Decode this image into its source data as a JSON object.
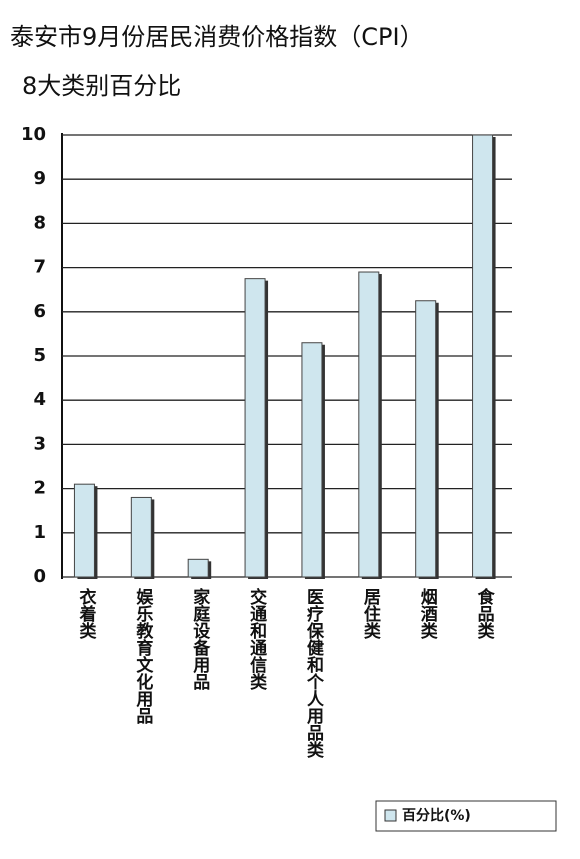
{
  "chart_data": {
    "type": "bar",
    "title": "泰安市9月份居民消费价格指数（CPI）",
    "subtitle": "8大类别百分比",
    "categories": [
      "衣着类",
      "娱乐教育文化用品",
      "家庭设备用品",
      "交通和通信类",
      "医疗保健和个人用品类",
      "居住类",
      "烟酒类",
      "食品类"
    ],
    "series": [
      {
        "name": "百分比(%)",
        "color": "#cfe6ee",
        "values": [
          2.1,
          1.8,
          0.4,
          6.75,
          5.3,
          6.9,
          6.25,
          10
        ]
      }
    ],
    "ylim": [
      0,
      10
    ],
    "yticks": [
      0,
      1,
      2,
      3,
      4,
      5,
      6,
      7,
      8,
      9,
      10
    ],
    "grid": true,
    "legend": "bottom-right"
  }
}
